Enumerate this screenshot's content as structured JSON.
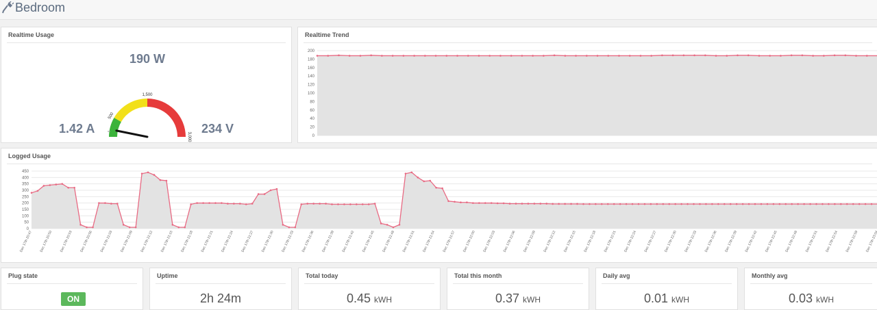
{
  "header": {
    "title": "Bedroom",
    "icon": "plug-icon"
  },
  "realtime_usage": {
    "title": "Realtime Usage",
    "power": "190 W",
    "current": "1.42 A",
    "voltage": "234 V",
    "gauge": {
      "value": 190,
      "max": 3000,
      "green_to": 500,
      "yellow_to": 1500,
      "ticks": [
        "500",
        "1,500",
        "3,000"
      ],
      "colors": {
        "green": "#3bb33b",
        "yellow": "#f2e01a",
        "red": "#e63b3b"
      }
    }
  },
  "realtime_trend": {
    "title": "Realtime Trend",
    "chart_data": {
      "type": "area",
      "ylim": [
        0,
        200
      ],
      "yticks": [
        "0",
        "20",
        "40",
        "60",
        "80",
        "100",
        "120",
        "140",
        "160",
        "180",
        "200"
      ],
      "values": [
        188,
        188,
        189,
        188,
        188,
        189,
        188,
        188,
        188,
        188,
        188,
        188,
        188,
        188,
        188,
        188,
        188,
        188,
        188,
        188,
        188,
        188,
        189,
        188,
        188,
        188,
        188,
        188,
        188,
        188,
        188,
        188,
        189,
        189,
        189,
        189,
        189,
        188,
        188,
        189,
        189,
        188,
        188,
        188,
        189,
        189,
        188,
        188,
        189,
        189,
        188,
        188,
        188
      ]
    }
  },
  "logged_usage": {
    "title": "Logged Usage",
    "chart_data": {
      "type": "area",
      "ylim": [
        0,
        450
      ],
      "yticks": [
        "0",
        "50",
        "100",
        "150",
        "200",
        "250",
        "300",
        "350",
        "400",
        "450"
      ],
      "xticks": [
        "Dec 17th 20:47",
        "Dec 17th 20:50",
        "Dec 17th 20:53",
        "Dec 17th 20:56",
        "Dec 17th 21:03",
        "Dec 17th 21:09",
        "Dec 17th 21:12",
        "Dec 17th 21:15",
        "Dec 17th 21:18",
        "Dec 17th 21:21",
        "Dec 17th 21:24",
        "Dec 17th 21:27",
        "Dec 17th 21:30",
        "Dec 17th 21:33",
        "Dec 17th 21:36",
        "Dec 17th 21:39",
        "Dec 17th 21:42",
        "Dec 17th 21:45",
        "Dec 17th 21:48",
        "Dec 17th 21:51",
        "Dec 17th 21:54",
        "Dec 17th 21:57",
        "Dec 17th 22:00",
        "Dec 17th 22:03",
        "Dec 17th 22:06",
        "Dec 17th 22:09",
        "Dec 17th 22:12",
        "Dec 17th 22:15",
        "Dec 17th 22:18",
        "Dec 17th 22:21",
        "Dec 17th 22:24",
        "Dec 17th 22:27",
        "Dec 17th 22:30",
        "Dec 17th 22:33",
        "Dec 17th 22:36",
        "Dec 17th 22:39",
        "Dec 17th 22:42",
        "Dec 17th 22:45",
        "Dec 17th 22:48",
        "Dec 17th 22:51",
        "Dec 17th 22:54",
        "Dec 17th 22:59",
        "Dec 17th 23:04"
      ],
      "values": [
        280,
        295,
        335,
        340,
        345,
        350,
        320,
        320,
        30,
        10,
        10,
        200,
        200,
        195,
        195,
        30,
        10,
        10,
        430,
        440,
        420,
        380,
        375,
        30,
        10,
        10,
        190,
        200,
        200,
        200,
        200,
        200,
        195,
        195,
        195,
        190,
        195,
        270,
        270,
        300,
        310,
        30,
        10,
        10,
        190,
        195,
        195,
        195,
        195,
        190,
        190,
        190,
        190,
        190,
        190,
        190,
        195,
        40,
        30,
        10,
        30,
        430,
        440,
        400,
        370,
        375,
        320,
        315,
        215,
        210,
        205,
        205,
        200,
        200,
        200,
        200,
        198,
        198,
        195,
        195,
        195,
        195,
        195,
        195,
        195,
        193,
        193,
        193,
        193,
        193,
        192,
        192,
        192,
        192,
        192,
        192,
        192,
        192,
        192,
        192,
        192,
        192,
        192,
        192,
        192,
        192,
        192,
        192,
        192,
        192,
        192,
        192,
        192,
        192,
        192,
        192,
        192,
        192,
        192,
        192,
        192,
        192,
        192,
        192,
        192,
        192,
        192,
        192,
        192,
        192,
        192,
        192,
        192,
        192,
        192,
        192,
        192,
        192,
        192
      ]
    }
  },
  "stats": {
    "plug_state": {
      "title": "Plug state",
      "value": "ON"
    },
    "uptime": {
      "title": "Uptime",
      "value": "2h 24m"
    },
    "total_today": {
      "title": "Total today",
      "value": "0.45",
      "unit": "kWH"
    },
    "total_month": {
      "title": "Total this month",
      "value": "0.37",
      "unit": "kWH"
    },
    "daily_avg": {
      "title": "Daily avg",
      "value": "0.01",
      "unit": "kWH"
    },
    "monthly_avg": {
      "title": "Monthly avg",
      "value": "0.03",
      "unit": "kWH"
    }
  }
}
